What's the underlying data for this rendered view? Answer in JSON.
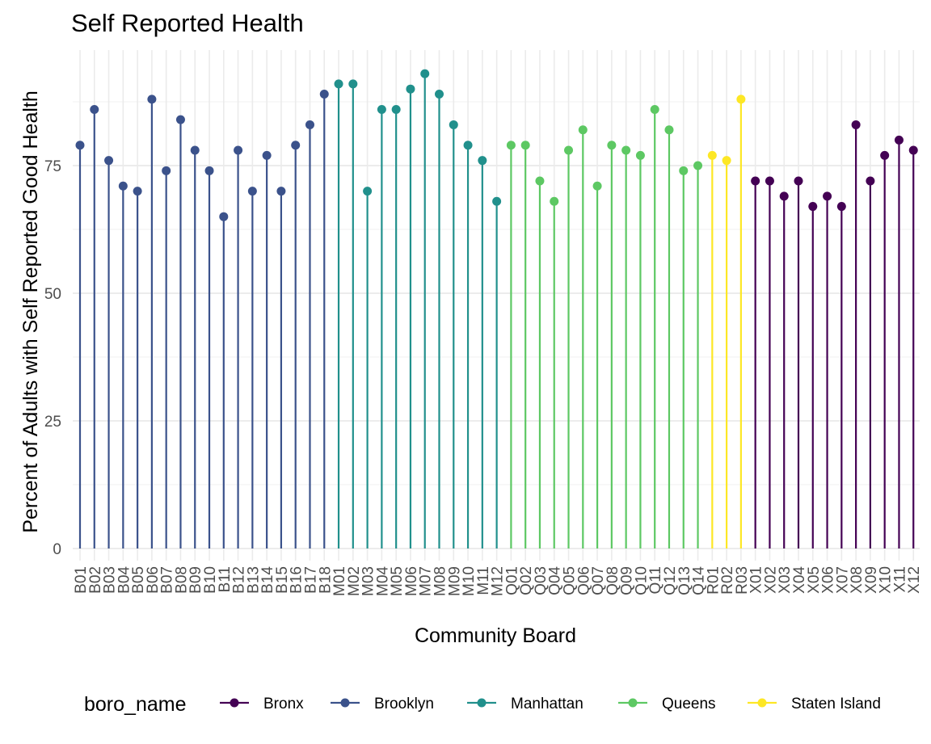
{
  "chart_data": {
    "type": "lollipop",
    "title": "Self Reported Health",
    "xlabel": "Community Board",
    "ylabel": "Percent of Adults with Self Reported Good Health",
    "ylim": [
      0,
      95
    ],
    "y_ticks": [
      0,
      25,
      50,
      75
    ],
    "grid": true,
    "legend_position": "bottom",
    "legend_title": "boro_name",
    "legend": [
      {
        "name": "Bronx",
        "color": "#440154"
      },
      {
        "name": "Brooklyn",
        "color": "#3B528B"
      },
      {
        "name": "Manhattan",
        "color": "#21908C"
      },
      {
        "name": "Queens",
        "color": "#5DC863"
      },
      {
        "name": "Staten Island",
        "color": "#FDE725"
      }
    ],
    "points": [
      {
        "board": "B01",
        "boro": "Brooklyn",
        "value": 79
      },
      {
        "board": "B02",
        "boro": "Brooklyn",
        "value": 86
      },
      {
        "board": "B03",
        "boro": "Brooklyn",
        "value": 76
      },
      {
        "board": "B04",
        "boro": "Brooklyn",
        "value": 71
      },
      {
        "board": "B05",
        "boro": "Brooklyn",
        "value": 70
      },
      {
        "board": "B06",
        "boro": "Brooklyn",
        "value": 88
      },
      {
        "board": "B07",
        "boro": "Brooklyn",
        "value": 74
      },
      {
        "board": "B08",
        "boro": "Brooklyn",
        "value": 84
      },
      {
        "board": "B09",
        "boro": "Brooklyn",
        "value": 78
      },
      {
        "board": "B10",
        "boro": "Brooklyn",
        "value": 74
      },
      {
        "board": "B11",
        "boro": "Brooklyn",
        "value": 65
      },
      {
        "board": "B12",
        "boro": "Brooklyn",
        "value": 78
      },
      {
        "board": "B13",
        "boro": "Brooklyn",
        "value": 70
      },
      {
        "board": "B14",
        "boro": "Brooklyn",
        "value": 77
      },
      {
        "board": "B15",
        "boro": "Brooklyn",
        "value": 70
      },
      {
        "board": "B16",
        "boro": "Brooklyn",
        "value": 79
      },
      {
        "board": "B17",
        "boro": "Brooklyn",
        "value": 83
      },
      {
        "board": "B18",
        "boro": "Brooklyn",
        "value": 89
      },
      {
        "board": "M01",
        "boro": "Manhattan",
        "value": 91
      },
      {
        "board": "M02",
        "boro": "Manhattan",
        "value": 91
      },
      {
        "board": "M03",
        "boro": "Manhattan",
        "value": 70
      },
      {
        "board": "M04",
        "boro": "Manhattan",
        "value": 86
      },
      {
        "board": "M05",
        "boro": "Manhattan",
        "value": 86
      },
      {
        "board": "M06",
        "boro": "Manhattan",
        "value": 90
      },
      {
        "board": "M07",
        "boro": "Manhattan",
        "value": 93
      },
      {
        "board": "M08",
        "boro": "Manhattan",
        "value": 89
      },
      {
        "board": "M09",
        "boro": "Manhattan",
        "value": 83
      },
      {
        "board": "M10",
        "boro": "Manhattan",
        "value": 79
      },
      {
        "board": "M11",
        "boro": "Manhattan",
        "value": 76
      },
      {
        "board": "M12",
        "boro": "Manhattan",
        "value": 68
      },
      {
        "board": "Q01",
        "boro": "Queens",
        "value": 79
      },
      {
        "board": "Q02",
        "boro": "Queens",
        "value": 79
      },
      {
        "board": "Q03",
        "boro": "Queens",
        "value": 72
      },
      {
        "board": "Q04",
        "boro": "Queens",
        "value": 68
      },
      {
        "board": "Q05",
        "boro": "Queens",
        "value": 78
      },
      {
        "board": "Q06",
        "boro": "Queens",
        "value": 82
      },
      {
        "board": "Q07",
        "boro": "Queens",
        "value": 71
      },
      {
        "board": "Q08",
        "boro": "Queens",
        "value": 79
      },
      {
        "board": "Q09",
        "boro": "Queens",
        "value": 78
      },
      {
        "board": "Q10",
        "boro": "Queens",
        "value": 77
      },
      {
        "board": "Q11",
        "boro": "Queens",
        "value": 86
      },
      {
        "board": "Q12",
        "boro": "Queens",
        "value": 82
      },
      {
        "board": "Q13",
        "boro": "Queens",
        "value": 74
      },
      {
        "board": "Q14",
        "boro": "Queens",
        "value": 75
      },
      {
        "board": "R01",
        "boro": "Staten Island",
        "value": 77
      },
      {
        "board": "R02",
        "boro": "Staten Island",
        "value": 76
      },
      {
        "board": "R03",
        "boro": "Staten Island",
        "value": 88
      },
      {
        "board": "X01",
        "boro": "Bronx",
        "value": 72
      },
      {
        "board": "X02",
        "boro": "Bronx",
        "value": 72
      },
      {
        "board": "X03",
        "boro": "Bronx",
        "value": 69
      },
      {
        "board": "X04",
        "boro": "Bronx",
        "value": 72
      },
      {
        "board": "X05",
        "boro": "Bronx",
        "value": 67
      },
      {
        "board": "X06",
        "boro": "Bronx",
        "value": 69
      },
      {
        "board": "X07",
        "boro": "Bronx",
        "value": 67
      },
      {
        "board": "X08",
        "boro": "Bronx",
        "value": 83
      },
      {
        "board": "X09",
        "boro": "Bronx",
        "value": 72
      },
      {
        "board": "X10",
        "boro": "Bronx",
        "value": 77
      },
      {
        "board": "X11",
        "boro": "Bronx",
        "value": 80
      },
      {
        "board": "X12",
        "boro": "Bronx",
        "value": 78
      }
    ]
  }
}
